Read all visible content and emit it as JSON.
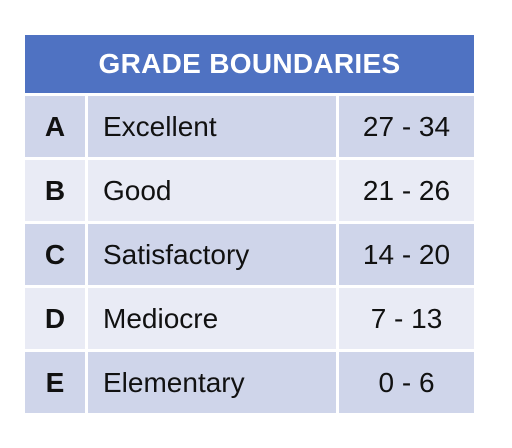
{
  "table": {
    "title": "GRADE BOUNDARIES",
    "rows": [
      {
        "letter": "A",
        "label": "Excellent",
        "range": "27 - 34"
      },
      {
        "letter": "B",
        "label": "Good",
        "range": "21 - 26"
      },
      {
        "letter": "C",
        "label": "Satisfactory",
        "range": "14 - 20"
      },
      {
        "letter": "D",
        "label": "Mediocre",
        "range": "7 - 13"
      },
      {
        "letter": "E",
        "label": "Elementary",
        "range": "0 - 6"
      }
    ]
  },
  "colors": {
    "header_bg": "#4f72c2",
    "row_dark": "#cfd5ea",
    "row_light": "#e9ebf5"
  }
}
